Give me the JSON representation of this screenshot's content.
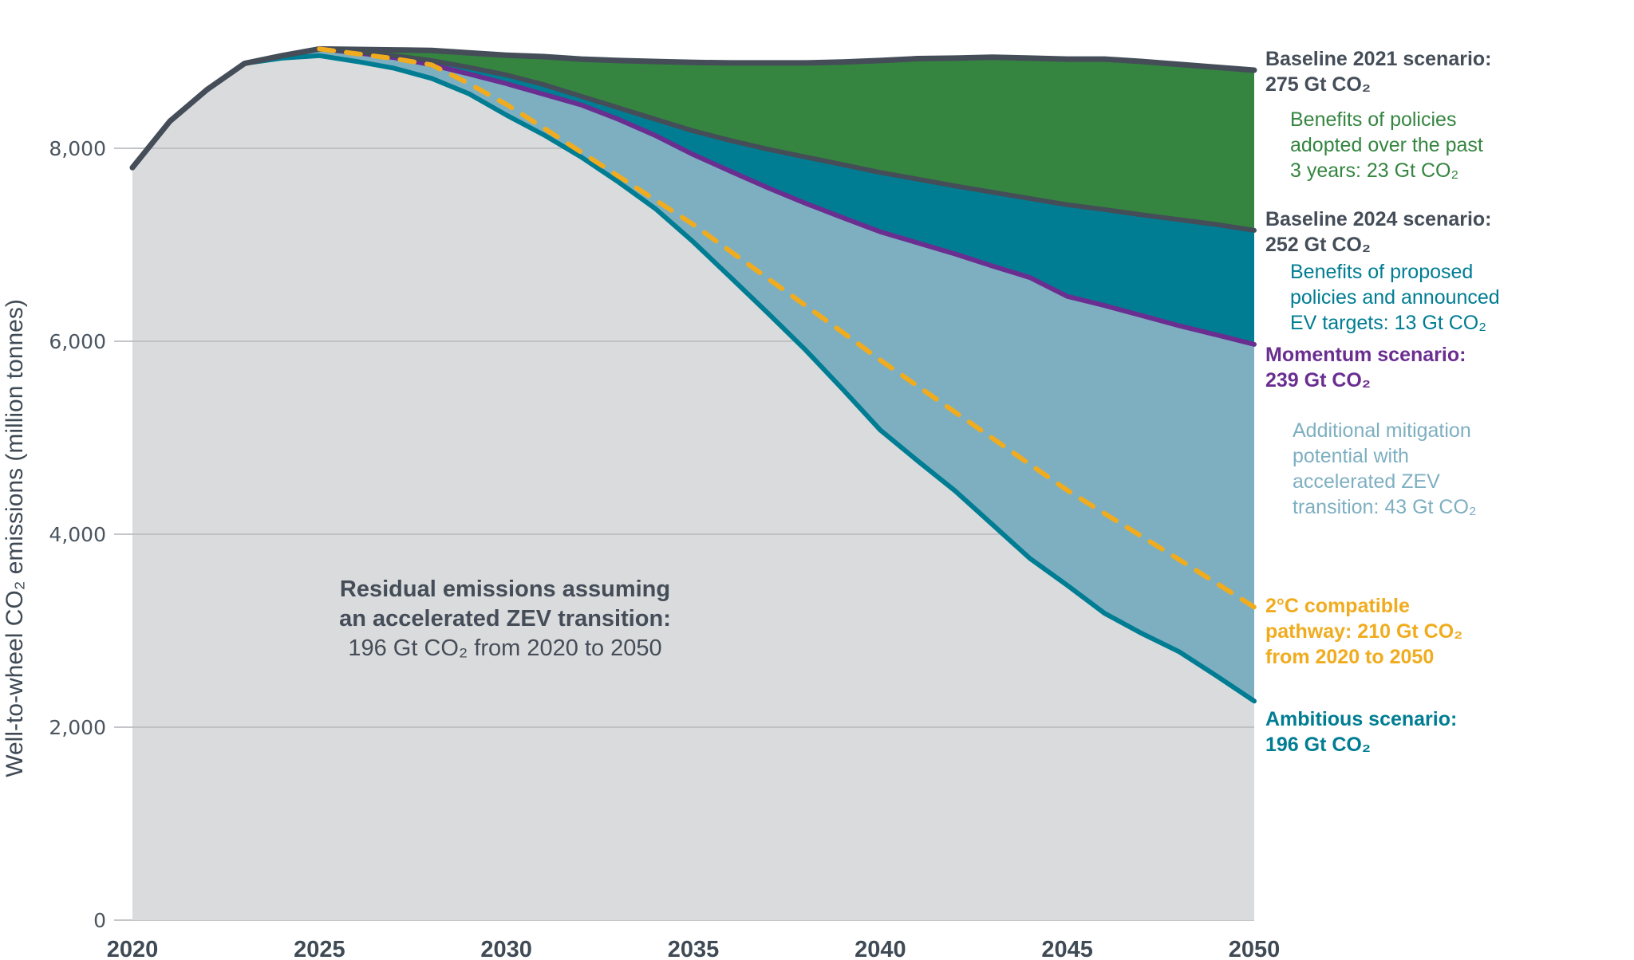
{
  "chart_data": {
    "type": "area",
    "title": "",
    "xlabel": "",
    "ylabel": "Well-to-wheel CO₂ emissions (million tonnes)",
    "xlim": [
      2020,
      2050
    ],
    "ylim": [
      0,
      9000
    ],
    "x_ticks": [
      2020,
      2025,
      2030,
      2035,
      2040,
      2045,
      2050
    ],
    "x_tick_labels": [
      "2020",
      "2025",
      "2030",
      "2035",
      "2040",
      "2045",
      "2050"
    ],
    "y_ticks": [
      0,
      2000,
      4000,
      6000,
      8000
    ],
    "y_tick_labels": [
      "0",
      "2,000",
      "4,000",
      "6,000",
      "8,000"
    ],
    "grid": "horizontal",
    "x": [
      2020,
      2021,
      2022,
      2023,
      2024,
      2025,
      2026,
      2027,
      2028,
      2029,
      2030,
      2031,
      2032,
      2033,
      2034,
      2035,
      2036,
      2037,
      2038,
      2039,
      2040,
      2041,
      2042,
      2043,
      2044,
      2045,
      2046,
      2047,
      2048,
      2049,
      2050
    ],
    "series": [
      {
        "name": "Baseline 2021 scenario",
        "style": "line-top",
        "color": "#444d58",
        "values": [
          7800,
          8280,
          8610,
          8880,
          8960,
          9030,
          9025,
          9020,
          9015,
          8990,
          8965,
          8950,
          8925,
          8910,
          8900,
          8890,
          8885,
          8885,
          8885,
          8895,
          8910,
          8930,
          8935,
          8945,
          8935,
          8925,
          8925,
          8900,
          8870,
          8840,
          8810
        ]
      },
      {
        "name": "Baseline 2024 scenario",
        "style": "line",
        "color": "#444d58",
        "values": [
          7800,
          8280,
          8610,
          8880,
          8960,
          9030,
          9000,
          8960,
          8910,
          8840,
          8760,
          8660,
          8540,
          8420,
          8300,
          8180,
          8080,
          7990,
          7910,
          7830,
          7750,
          7680,
          7610,
          7545,
          7480,
          7415,
          7365,
          7310,
          7260,
          7210,
          7150
        ]
      },
      {
        "name": "Momentum scenario",
        "style": "line",
        "color": "#6a2e91",
        "values": [
          7800,
          8280,
          8610,
          8880,
          8960,
          9030,
          8990,
          8940,
          8865,
          8770,
          8670,
          8560,
          8450,
          8300,
          8130,
          7935,
          7760,
          7590,
          7430,
          7280,
          7135,
          7020,
          6905,
          6780,
          6660,
          6465,
          6370,
          6265,
          6160,
          6065,
          5968
        ]
      },
      {
        "name": "Ambitious scenario",
        "style": "line",
        "color": "#007d93",
        "values": [
          7800,
          8280,
          8610,
          8880,
          8935,
          8960,
          8900,
          8830,
          8725,
          8565,
          8345,
          8140,
          7910,
          7650,
          7370,
          7030,
          6660,
          6290,
          5910,
          5500,
          5080,
          4760,
          4450,
          4100,
          3750,
          3470,
          3180,
          2970,
          2780,
          2530,
          2270
        ]
      },
      {
        "name": "2°C compatible pathway",
        "style": "dashed",
        "color": "#f0ac1e",
        "values": [
          null,
          null,
          null,
          null,
          null,
          9030,
          8980,
          8930,
          8865,
          8670,
          8455,
          8210,
          7960,
          7710,
          7460,
          7210,
          6930,
          6650,
          6370,
          6090,
          5805,
          5535,
          5265,
          4995,
          4725,
          4455,
          4215,
          3975,
          3735,
          3490,
          3245
        ]
      }
    ],
    "bands": [
      {
        "name": "Benefits of policies adopted over the past 3 years",
        "between": [
          "Baseline 2024 scenario",
          "Baseline 2021 scenario"
        ],
        "color": "#358540"
      },
      {
        "name": "Benefits of proposed policies and announced EV targets",
        "between": [
          "Momentum scenario",
          "Baseline 2024 scenario"
        ],
        "color": "#007d93"
      },
      {
        "name": "Additional mitigation potential with accelerated ZEV transition",
        "between": [
          "Ambitious scenario",
          "Momentum scenario"
        ],
        "color": "#7eafc1"
      },
      {
        "name": "Residual emissions",
        "between": [
          "zero",
          "Ambitious scenario"
        ],
        "color": "#dadbdd"
      }
    ],
    "annotations": {
      "baseline2021": {
        "lines": [
          "Baseline 2021 scenario:",
          "275 Gt CO₂"
        ],
        "color": "#444d58",
        "bold": true
      },
      "benefits_adopted": {
        "lines": [
          "Benefits of policies",
          "adopted over the past",
          "3 years: 23 Gt CO₂"
        ],
        "color": "#358540",
        "bold": false
      },
      "baseline2024": {
        "lines": [
          "Baseline 2024 scenario:",
          "252 Gt CO₂"
        ],
        "color": "#444d58",
        "bold": true
      },
      "benefits_proposed": {
        "lines": [
          "Benefits of proposed",
          "policies and announced",
          "EV targets: 13 Gt CO₂"
        ],
        "color": "#007d93",
        "bold": false
      },
      "momentum": {
        "lines": [
          "Momentum scenario:",
          "239 Gt CO₂"
        ],
        "color": "#6a2e91",
        "bold": true
      },
      "additional": {
        "lines": [
          "Additional mitigation",
          "potential with",
          "accelerated ZEV",
          "transition: 43 Gt CO₂"
        ],
        "color": "#7eafc1",
        "bold": false
      },
      "two_degree": {
        "lines": [
          "2°C compatible",
          "pathway: 210 Gt CO₂",
          "from 2020 to 2050"
        ],
        "color": "#f0ac1e",
        "bold": true
      },
      "ambitious": {
        "lines": [
          "Ambitious scenario:",
          "196 Gt CO₂"
        ],
        "color": "#007d93",
        "bold": true
      },
      "residual": {
        "lines": [
          "Residual emissions assuming",
          "an accelerated ZEV transition:",
          "196 Gt CO₂ from 2020 to 2050"
        ],
        "color": "#444d58"
      }
    }
  }
}
